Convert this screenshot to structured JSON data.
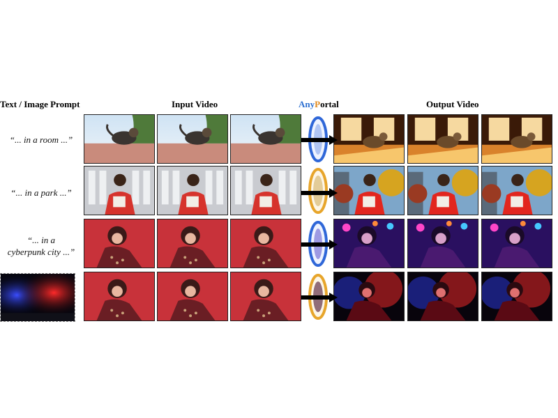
{
  "headers": {
    "prompt": "Text / Image Prompt",
    "input": "Input Video",
    "brand_any": "Any",
    "brand_p": "P",
    "brand_rest": "ortal",
    "output": "Output Video"
  },
  "prompts": [
    {
      "line1": "“... in a room ...”"
    },
    {
      "line1": "“... in a park ...”"
    },
    {
      "line1": "“... in a",
      "line2": "cyberpunk city ...”"
    }
  ],
  "colors": {
    "brand_blue": "#2c6fd0",
    "brand_orange": "#e08a1e",
    "portal_blue": "#2f67d8",
    "portal_orange": "#e7a52b"
  }
}
